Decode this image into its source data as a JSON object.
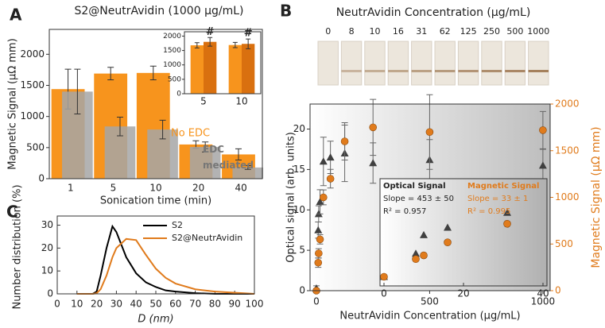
{
  "chart_data": [
    {
      "type": "bar",
      "panel": "A",
      "title": "S2@NeutrAvidin (1000 μg/mL)",
      "xlabel": "Sonication time (min)",
      "ylabel": "Magnetic Signal (μΩ mm)",
      "categories": [
        "1",
        "5",
        "10",
        "20",
        "40"
      ],
      "series": [
        {
          "name": "No EDC",
          "color": "#f7941d",
          "values": [
            1440,
            1690,
            1700,
            550,
            390
          ],
          "errors": [
            320,
            100,
            110,
            60,
            90
          ]
        },
        {
          "name": "EDC mediated",
          "color": "#a6a6a6",
          "values": [
            1400,
            840,
            790,
            510,
            180
          ],
          "errors": [
            360,
            150,
            150,
            80,
            30
          ]
        }
      ],
      "ylim": [
        0,
        2400
      ],
      "yticks": [
        0,
        500,
        1000,
        1500,
        2000
      ]
    },
    {
      "type": "bar",
      "categories": [
        "5",
        "10"
      ],
      "series": [
        {
          "color": "#f7941d",
          "values": [
            1680,
            1690
          ],
          "errors": [
            90,
            90
          ]
        },
        {
          "color": "#d9700f",
          "values": [
            1800,
            1730
          ],
          "errors": [
            150,
            170
          ]
        }
      ],
      "annotations": [
        "#",
        "#"
      ],
      "ylim": [
        0,
        2150
      ],
      "yticks": [
        0,
        500,
        1000,
        1500,
        2000
      ]
    },
    {
      "type": "scatter",
      "panel": "B",
      "strip_title": "NeutrAvidin Concentration (μg/mL)",
      "strip_labels": [
        "0",
        "8",
        "10",
        "16",
        "31",
        "62",
        "125",
        "250",
        "500",
        "1000"
      ],
      "xlabel": "NeutrAvidin Concentration (μg/mL)",
      "ylabel": "Optical signal (arb. units)",
      "y2label": "Magnetic Signal (μΩ mm)",
      "x": [
        0,
        8,
        10,
        16,
        31,
        62,
        125,
        250,
        500,
        1000
      ],
      "series": [
        {
          "color": "#404040",
          "marker": "triangle",
          "values": [
            0.3,
            7.5,
            9.5,
            11,
            16,
            16.5,
            17,
            15.8,
            16.2,
            15.5
          ],
          "errors": [
            0.3,
            1,
            1,
            1.5,
            3,
            2,
            3.5,
            2.5,
            2.5,
            2
          ]
        },
        {
          "color": "#e07b1c",
          "marker": "circle",
          "axis": "y2",
          "values": [
            0,
            300,
            400,
            550,
            1000,
            1200,
            1600,
            1750,
            1700,
            1720
          ],
          "errors": [
            20,
            50,
            50,
            50,
            80,
            100,
            200,
            300,
            400,
            200
          ]
        }
      ],
      "xlim": [
        -28,
        1032
      ],
      "xticks": [
        0,
        500,
        1000
      ],
      "ylim": [
        0,
        23.1
      ],
      "yticks": [
        0,
        5,
        10,
        15,
        20
      ],
      "y2lim": [
        0,
        2000
      ],
      "y2ticks": [
        0,
        500,
        1000,
        1500,
        2000
      ]
    },
    {
      "type": "scatter",
      "x": [
        0,
        8,
        10,
        16,
        31
      ],
      "series": [
        {
          "name": "Optical Signal",
          "color": "#404040",
          "marker": "triangle",
          "values": [
            0.3,
            2.8,
            4.8,
            5.6,
            7.2
          ],
          "annotations": [
            "Slope = 453 ± 50",
            "R² = 0.957"
          ]
        },
        {
          "name": "Magnetic Signal",
          "color": "#e07b1c",
          "marker": "circle",
          "axis": "y2",
          "values": [
            30,
            220,
            260,
            400,
            600
          ],
          "annotations": [
            "Slope = 33 ± 1",
            "R² = 0.995"
          ]
        }
      ],
      "xlim": [
        -1,
        41
      ],
      "xticks": [
        0,
        20,
        40
      ],
      "ylim": [
        0,
        10
      ],
      "y2lim": [
        0,
        1000
      ]
    },
    {
      "type": "line",
      "panel": "C",
      "xlabel": "D (nm)",
      "ylabel": "Number distribution (%)",
      "x": [
        10,
        15,
        18,
        20,
        22,
        25,
        28,
        30,
        35,
        40,
        45,
        50,
        55,
        60,
        70,
        80,
        100
      ],
      "series": [
        {
          "name": "S2",
          "color": "#000000",
          "values": [
            0,
            0,
            0,
            1,
            8,
            20,
            29.5,
            27,
            16,
            9,
            5,
            3,
            1.5,
            1,
            0.3,
            0,
            0
          ]
        },
        {
          "name": "S2@NeutrAvidin",
          "color": "#e07b1c",
          "values": [
            0,
            0,
            0,
            0.3,
            2,
            8,
            16,
            20,
            24,
            23.5,
            17,
            11,
            7,
            4.5,
            2,
            1,
            0
          ]
        }
      ],
      "xlim": [
        0,
        100
      ],
      "xticks": [
        0,
        10,
        20,
        30,
        40,
        50,
        60,
        70,
        80,
        90,
        100
      ],
      "ylim": [
        0,
        34
      ],
      "yticks": [
        0,
        10,
        20,
        30
      ]
    }
  ]
}
